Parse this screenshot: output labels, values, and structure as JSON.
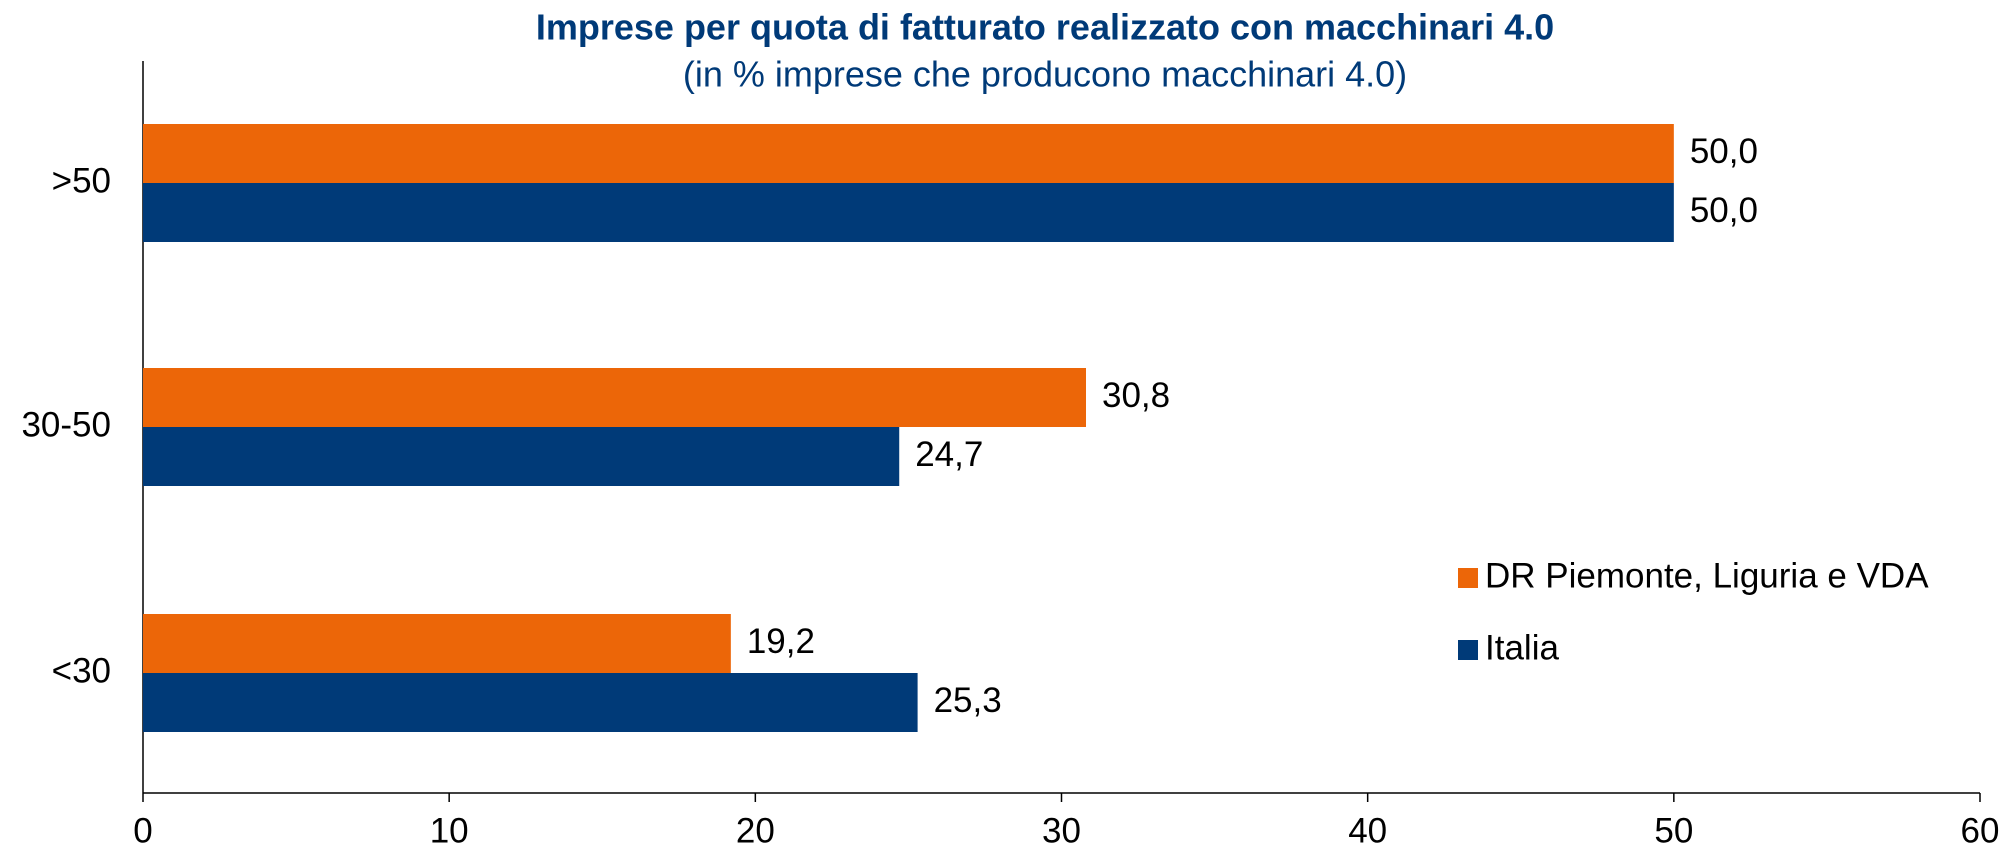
{
  "chart_data": {
    "type": "barh",
    "title": "Imprese per quota di fatturato realizzato con macchinari 4.0",
    "subtitle": "(in % imprese che producono macchinari 4.0)",
    "categories": [
      ">50",
      "30-50",
      "<30"
    ],
    "series": [
      {
        "name": "DR Piemonte, Liguria e VDA",
        "color": "#ec6608",
        "values": [
          50.0,
          30.8,
          19.2
        ],
        "value_labels": [
          "50,0",
          "30,8",
          "19,2"
        ]
      },
      {
        "name": "Italia",
        "color": "#003a78",
        "values": [
          50.0,
          24.7,
          25.3
        ],
        "value_labels": [
          "50,0",
          "24,7",
          "25,3"
        ]
      }
    ],
    "xlim": [
      0,
      60
    ],
    "xticks": [
      0,
      10,
      20,
      30,
      40,
      50,
      60
    ],
    "grid": false,
    "legend": "right"
  }
}
